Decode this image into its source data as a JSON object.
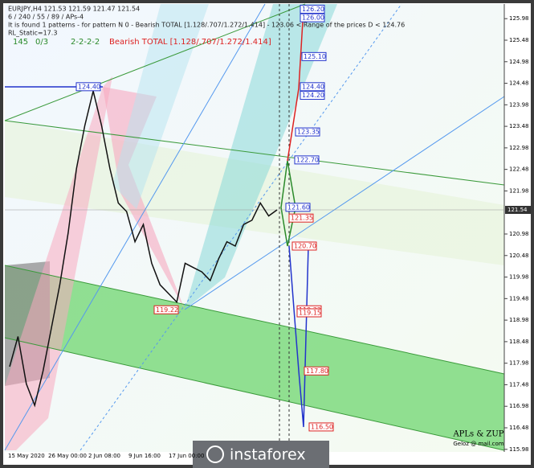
{
  "chart_data": {
    "type": "line",
    "header": [
      "EURJPY,H4  121.53 121.59 121.47 121.54",
      "6 / 240 / 55 / 89 / APs-4",
      "It is found 1 patterns -  for pattern N 0 - Bearish TOTAL [1.128/.707/1.272/1.414] - 123.06 < Range of the prices D < 124.76",
      "RL_Static=17.3"
    ],
    "status": [
      "145",
      "0/3",
      "2-2-2-2",
      "Bearish TOTAL [1.128/.707/1.272/1.414]"
    ],
    "x_labels": [
      "15 May 2020",
      "26 May 00:00",
      "2 Jun 08:00",
      "9 Jun 16:00",
      "17 Jun 00:00"
    ],
    "series": [
      {
        "name": "EURJPY",
        "color": "#111111",
        "values": [
          117.9,
          118.6,
          117.5,
          117.0,
          117.8,
          118.8,
          119.8,
          121.0,
          122.5,
          123.5,
          124.3,
          123.5,
          122.5,
          121.7,
          121.5,
          120.8,
          121.2,
          120.3,
          119.8,
          119.6,
          119.4,
          120.3,
          120.2,
          120.1,
          119.9,
          120.4,
          120.8,
          120.7,
          121.2,
          121.3,
          121.7,
          121.4,
          121.54
        ]
      }
    ],
    "ylim": [
      115.92,
      126.32
    ],
    "yticks": [
      125.98,
      125.48,
      124.98,
      124.48,
      123.98,
      123.48,
      122.98,
      122.48,
      121.98,
      120.98,
      120.48,
      119.98,
      119.48,
      118.98,
      118.48,
      117.98,
      117.48,
      116.98,
      116.48,
      115.98
    ],
    "last_price": 121.54,
    "levels": {
      "values": [
        126.2,
        126.0,
        125.1,
        124.4,
        124.2,
        123.35,
        122.7,
        121.6,
        121.35,
        120.7,
        119.22,
        119.15,
        117.8,
        116.5,
        124.4,
        119.22
      ],
      "value_labels": [
        "126.20",
        "126.00",
        "125.10",
        "124.40",
        "124.20",
        "123.35",
        "122.70",
        "121.60",
        "121.35",
        "120.70",
        "119.22",
        "119.15",
        "117.80",
        "116.50",
        "124.40",
        "119.22"
      ],
      "colors": [
        "#2233cc",
        "#2233cc",
        "#2233cc",
        "#2233cc",
        "#2233cc",
        "#2233cc",
        "#2233cc",
        "#2233cc",
        "#dd2222",
        "#dd2222",
        "#dd2222",
        "#dd2222",
        "#dd2222",
        "#dd2222",
        "#2233cc",
        "#dd2222"
      ]
    },
    "credits": [
      "APLs & ZUP",
      "Geloz @ mail.com"
    ],
    "logo": "instaforex"
  }
}
